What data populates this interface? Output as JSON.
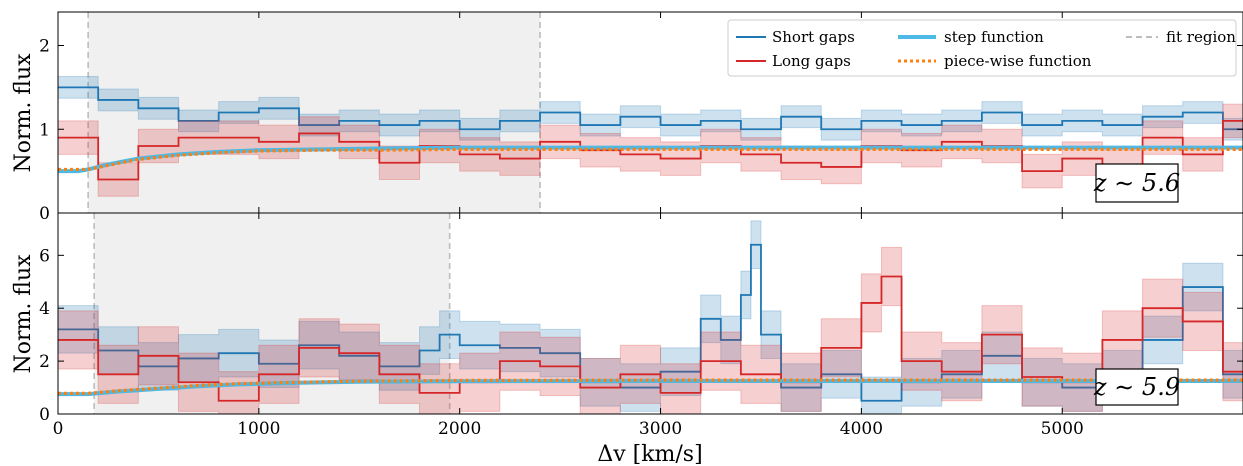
{
  "figure": {
    "x_axis_label": "Δv [km/s]",
    "x_ticks": [
      "0",
      "1000",
      "2000",
      "3000",
      "4000",
      "5000"
    ],
    "legend": {
      "short_gaps": "Short gaps",
      "long_gaps": "Long gaps",
      "step_function": "step function",
      "piecewise_function": "piece-wise function",
      "fit_region": "fit region"
    },
    "colors": {
      "short_gaps": "#1f77b4",
      "long_gaps": "#d62728",
      "step_function": "#4cb9e7",
      "piecewise_function": "#ff7f0e",
      "fit_region": "#bdbdbd"
    }
  },
  "chart_data": [
    {
      "type": "line",
      "panel": "top",
      "ylabel": "Norm. flux",
      "annotation": "z ∼ 5.6",
      "y_ticks": [
        "0",
        "1",
        "2"
      ],
      "xlim": [
        0,
        5900
      ],
      "ylim": [
        0,
        2.4
      ],
      "fit_region": [
        150,
        2400
      ],
      "series": [
        {
          "name": "Short gaps",
          "style": "step",
          "x": [
            0,
            200,
            400,
            600,
            800,
            1000,
            1200,
            1400,
            1600,
            1800,
            2000,
            2200,
            2400,
            2600,
            2800,
            3000,
            3200,
            3400,
            3600,
            3800,
            4000,
            4200,
            4400,
            4600,
            4800,
            5000,
            5200,
            5400,
            5600,
            5800,
            5900
          ],
          "y": [
            1.5,
            1.35,
            1.25,
            1.1,
            1.2,
            1.25,
            1.05,
            1.1,
            1.05,
            1.1,
            1.0,
            1.1,
            1.2,
            1.05,
            1.15,
            1.05,
            1.1,
            1.0,
            1.15,
            1.0,
            1.1,
            1.05,
            1.1,
            1.2,
            1.05,
            1.1,
            1.05,
            1.15,
            1.2,
            1.0,
            0.9
          ],
          "band": 0.13
        },
        {
          "name": "Long gaps",
          "style": "step",
          "x": [
            0,
            200,
            400,
            600,
            800,
            1000,
            1200,
            1400,
            1600,
            1800,
            2000,
            2200,
            2400,
            2600,
            2800,
            3000,
            3200,
            3400,
            3600,
            3800,
            4000,
            4200,
            4400,
            4600,
            4800,
            5000,
            5200,
            5400,
            5600,
            5800,
            5900
          ],
          "y": [
            0.9,
            0.4,
            0.8,
            0.9,
            0.9,
            0.85,
            0.95,
            0.85,
            0.6,
            0.8,
            0.7,
            0.65,
            0.85,
            0.75,
            0.7,
            0.65,
            0.8,
            0.7,
            0.6,
            0.55,
            0.8,
            0.75,
            0.85,
            0.8,
            0.5,
            0.65,
            0.55,
            0.9,
            0.7,
            1.1,
            0.8
          ],
          "band": 0.2
        },
        {
          "name": "step function",
          "style": "smooth",
          "x": [
            0,
            100,
            150,
            250,
            400,
            600,
            800,
            1000,
            1300,
            1600,
            2000,
            2400,
            3000,
            4000,
            5000,
            5900
          ],
          "y": [
            0.5,
            0.5,
            0.52,
            0.58,
            0.65,
            0.7,
            0.73,
            0.75,
            0.76,
            0.77,
            0.78,
            0.78,
            0.78,
            0.78,
            0.78,
            0.78
          ]
        },
        {
          "name": "piece-wise function",
          "style": "smooth",
          "x": [
            0,
            100,
            150,
            250,
            400,
            600,
            800,
            1000,
            1300,
            1600,
            2000,
            2400,
            3000,
            4000,
            5000,
            5900
          ],
          "y": [
            0.52,
            0.52,
            0.52,
            0.57,
            0.64,
            0.69,
            0.72,
            0.74,
            0.75,
            0.75,
            0.76,
            0.76,
            0.76,
            0.76,
            0.76,
            0.76
          ]
        }
      ]
    },
    {
      "type": "line",
      "panel": "bottom",
      "ylabel": "Norm. flux",
      "annotation": "z ∼ 5.9",
      "y_ticks": [
        "0",
        "2",
        "4",
        "6"
      ],
      "xlim": [
        0,
        5900
      ],
      "ylim": [
        0,
        7.6
      ],
      "fit_region": [
        180,
        1950
      ],
      "series": [
        {
          "name": "Short gaps",
          "style": "step",
          "x": [
            0,
            200,
            400,
            600,
            800,
            1000,
            1200,
            1400,
            1600,
            1800,
            1900,
            2000,
            2200,
            2400,
            2600,
            2800,
            3000,
            3200,
            3300,
            3400,
            3450,
            3500,
            3600,
            3800,
            4000,
            4200,
            4400,
            4600,
            4800,
            5000,
            5200,
            5400,
            5600,
            5800,
            5900
          ],
          "y": [
            3.2,
            2.4,
            1.8,
            2.1,
            2.3,
            1.9,
            2.6,
            2.2,
            1.8,
            2.4,
            3.0,
            2.6,
            2.5,
            2.3,
            1.2,
            1.0,
            1.6,
            3.6,
            2.8,
            4.5,
            6.4,
            3.0,
            1.0,
            1.5,
            0.5,
            1.2,
            1.5,
            2.2,
            1.2,
            1.0,
            1.5,
            2.8,
            4.8,
            1.5,
            1.2
          ],
          "band": 0.9
        },
        {
          "name": "Long gaps",
          "style": "step",
          "x": [
            0,
            200,
            400,
            600,
            800,
            1000,
            1200,
            1400,
            1600,
            1800,
            2000,
            2200,
            2400,
            2600,
            2800,
            3000,
            3200,
            3400,
            3600,
            3800,
            4000,
            4100,
            4200,
            4400,
            4600,
            4800,
            5000,
            5200,
            5400,
            5600,
            5800,
            5900
          ],
          "y": [
            2.8,
            1.5,
            2.2,
            1.2,
            0.5,
            1.5,
            2.5,
            2.3,
            1.5,
            0.8,
            1.2,
            2.0,
            1.8,
            1.0,
            1.5,
            0.8,
            2.0,
            1.5,
            1.2,
            2.5,
            4.2,
            5.2,
            2.0,
            1.6,
            3.0,
            1.4,
            1.2,
            2.8,
            4.0,
            3.5,
            1.6,
            1.4
          ],
          "band": 1.1
        },
        {
          "name": "step function",
          "style": "smooth",
          "x": [
            0,
            150,
            300,
            500,
            700,
            900,
            1200,
            1500,
            2000,
            3000,
            4000,
            5000,
            5900
          ],
          "y": [
            0.75,
            0.75,
            0.85,
            0.95,
            1.05,
            1.12,
            1.18,
            1.22,
            1.24,
            1.25,
            1.25,
            1.25,
            1.25
          ]
        },
        {
          "name": "piece-wise function",
          "style": "smooth",
          "x": [
            0,
            150,
            300,
            500,
            700,
            900,
            1200,
            1500,
            2000,
            3000,
            4000,
            5000,
            5900
          ],
          "y": [
            0.78,
            0.78,
            0.88,
            0.98,
            1.08,
            1.15,
            1.2,
            1.24,
            1.27,
            1.28,
            1.28,
            1.28,
            1.28
          ]
        }
      ]
    }
  ]
}
